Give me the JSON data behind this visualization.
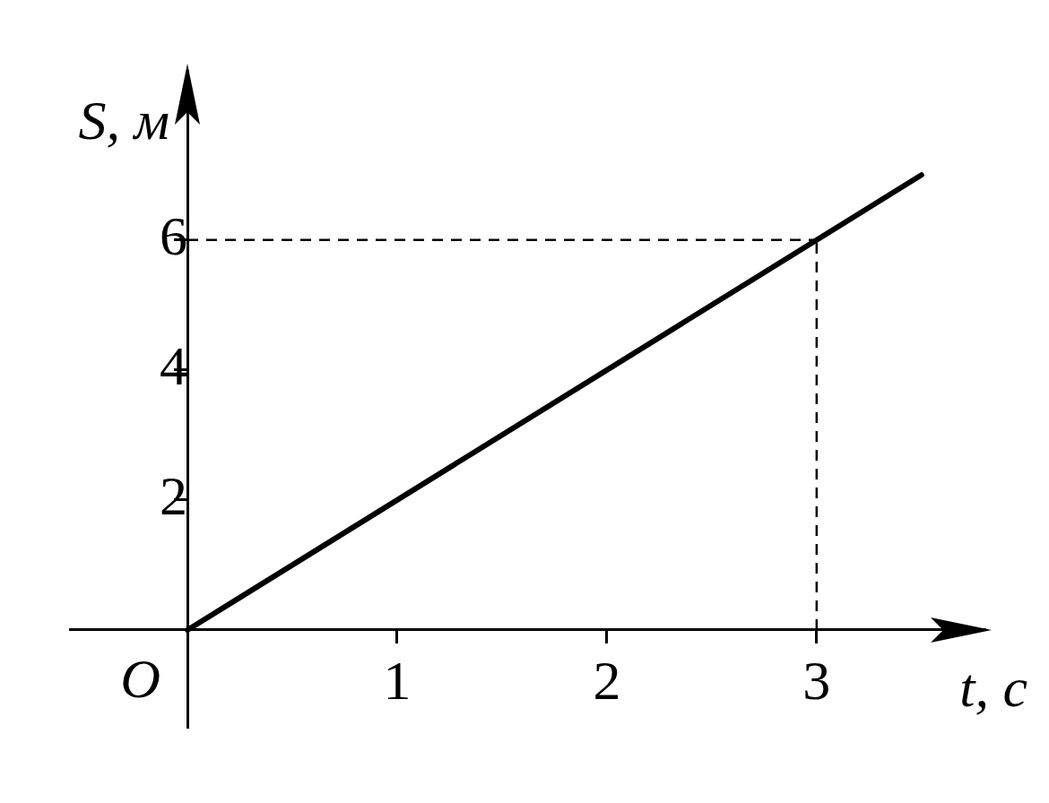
{
  "chart_data": {
    "type": "line",
    "xlabel": "t, с",
    "ylabel": "S, м",
    "x": [
      0,
      3.5
    ],
    "series": [
      {
        "color": "#000000",
        "values": [
          0,
          7
        ]
      }
    ],
    "xlim": [
      -0.56,
      3.8
    ],
    "ylim": [
      -1.5,
      8.6
    ],
    "xticks": [
      1,
      2,
      3
    ],
    "yticks": [
      2,
      4,
      6
    ],
    "ref_lines": [
      {
        "axis": "y",
        "value": 6,
        "line_style": "dashed",
        "color": "#000000"
      },
      {
        "axis": "x",
        "value": 3,
        "line_style": "dashed",
        "color": "#000000"
      }
    ],
    "annotations": [
      "O"
    ],
    "grid": false,
    "legend": false,
    "marker": "none",
    "line_style": "solid"
  }
}
